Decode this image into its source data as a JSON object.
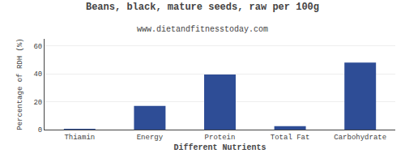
{
  "chart_data": {
    "type": "bar",
    "title": "Beans, black, mature seeds, raw per 100g",
    "subtitle": "www.dietandfitnesstoday.com",
    "categories": [
      "Thiamin",
      "Energy",
      "Protein",
      "Total Fat",
      "Carbohydrate"
    ],
    "values": [
      0.4,
      17,
      39.5,
      2.5,
      48
    ],
    "color": "#2e4d96",
    "xlabel": "Different Nutrients",
    "ylabel": "Percentage of RDH (%)",
    "ylim": [
      0,
      65
    ],
    "yticks": [
      0,
      20,
      40,
      60
    ],
    "grid": true
  }
}
